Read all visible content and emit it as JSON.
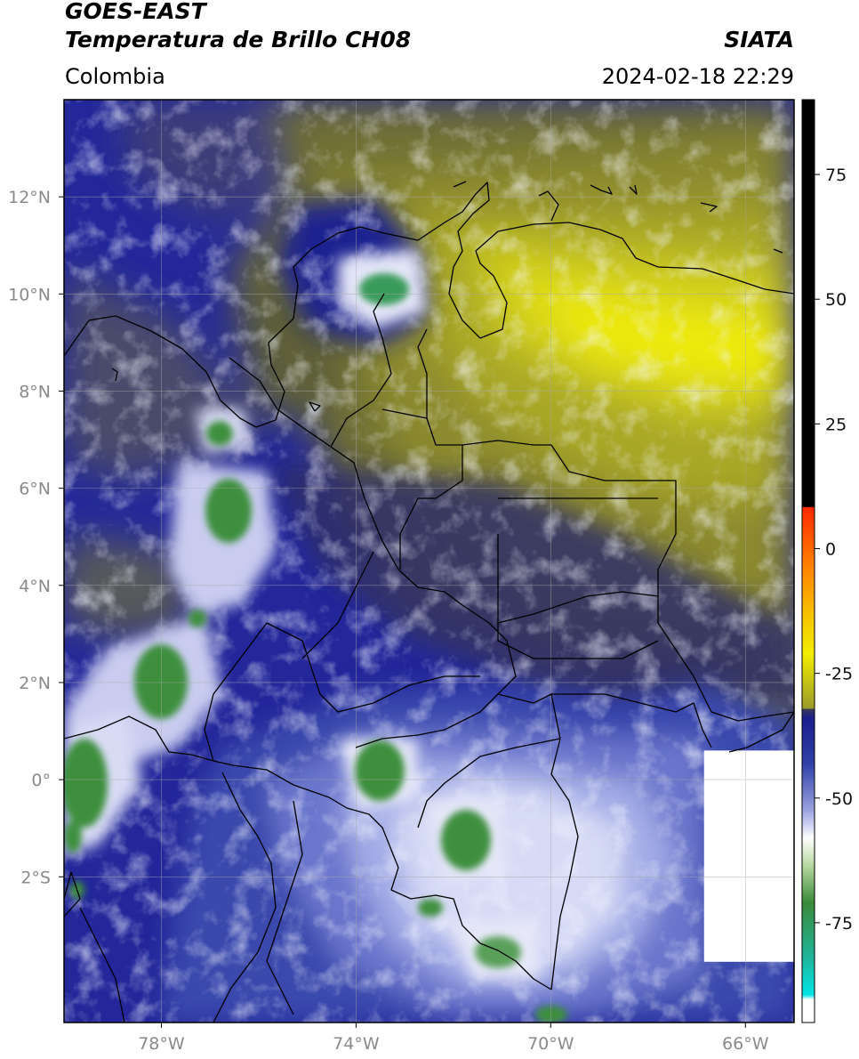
{
  "header": {
    "satellite": "GOES-EAST",
    "product": "Temperatura de Brillo CH08",
    "agency": "SIATA",
    "region": "Colombia",
    "datetime": "2024-02-18 22:29"
  },
  "map": {
    "lon_range": [
      -80.0,
      -65.0
    ],
    "lat_range": [
      -5.0,
      14.0
    ],
    "lat_labels": [
      {
        "lat": 12,
        "text": "12°N"
      },
      {
        "lat": 10,
        "text": "10°N"
      },
      {
        "lat": 8,
        "text": "8°N"
      },
      {
        "lat": 6,
        "text": "6°N"
      },
      {
        "lat": 4,
        "text": "4°N"
      },
      {
        "lat": 2,
        "text": "2°N"
      },
      {
        "lat": 0,
        "text": "0°"
      },
      {
        "lat": -2,
        "text": "2°S"
      }
    ],
    "lon_labels": [
      {
        "lon": -78,
        "text": "78°W"
      },
      {
        "lon": -74,
        "text": "74°W"
      },
      {
        "lon": -70,
        "text": "70°W"
      },
      {
        "lon": -66,
        "text": "66°W"
      }
    ],
    "gridlines": true,
    "no_data_region": {
      "lon_range": [
        -66.85,
        -65.0
      ],
      "lat_range": [
        -3.75,
        0.6
      ]
    }
  },
  "colorbar": {
    "range": [
      -95,
      90
    ],
    "tick_values": [
      75,
      50,
      25,
      0,
      -25,
      -50,
      -75
    ],
    "tick_labels": [
      "75",
      "50",
      "25",
      "0",
      "-25",
      "-50",
      "-75"
    ],
    "colors": {
      "warm_black": "#000000",
      "red": "#ff0000",
      "orange": "#ff8c00",
      "yellow": "#f4f000",
      "olive": "#7c7c2c",
      "dark_gray": "#3a3a55",
      "navy": "#1a1f8c",
      "periwinkle": "#9aa3e0",
      "white": "#ffffff",
      "green": "#3a8a3a",
      "teal": "#1fb59a",
      "cyan": "#00e5e5"
    }
  }
}
